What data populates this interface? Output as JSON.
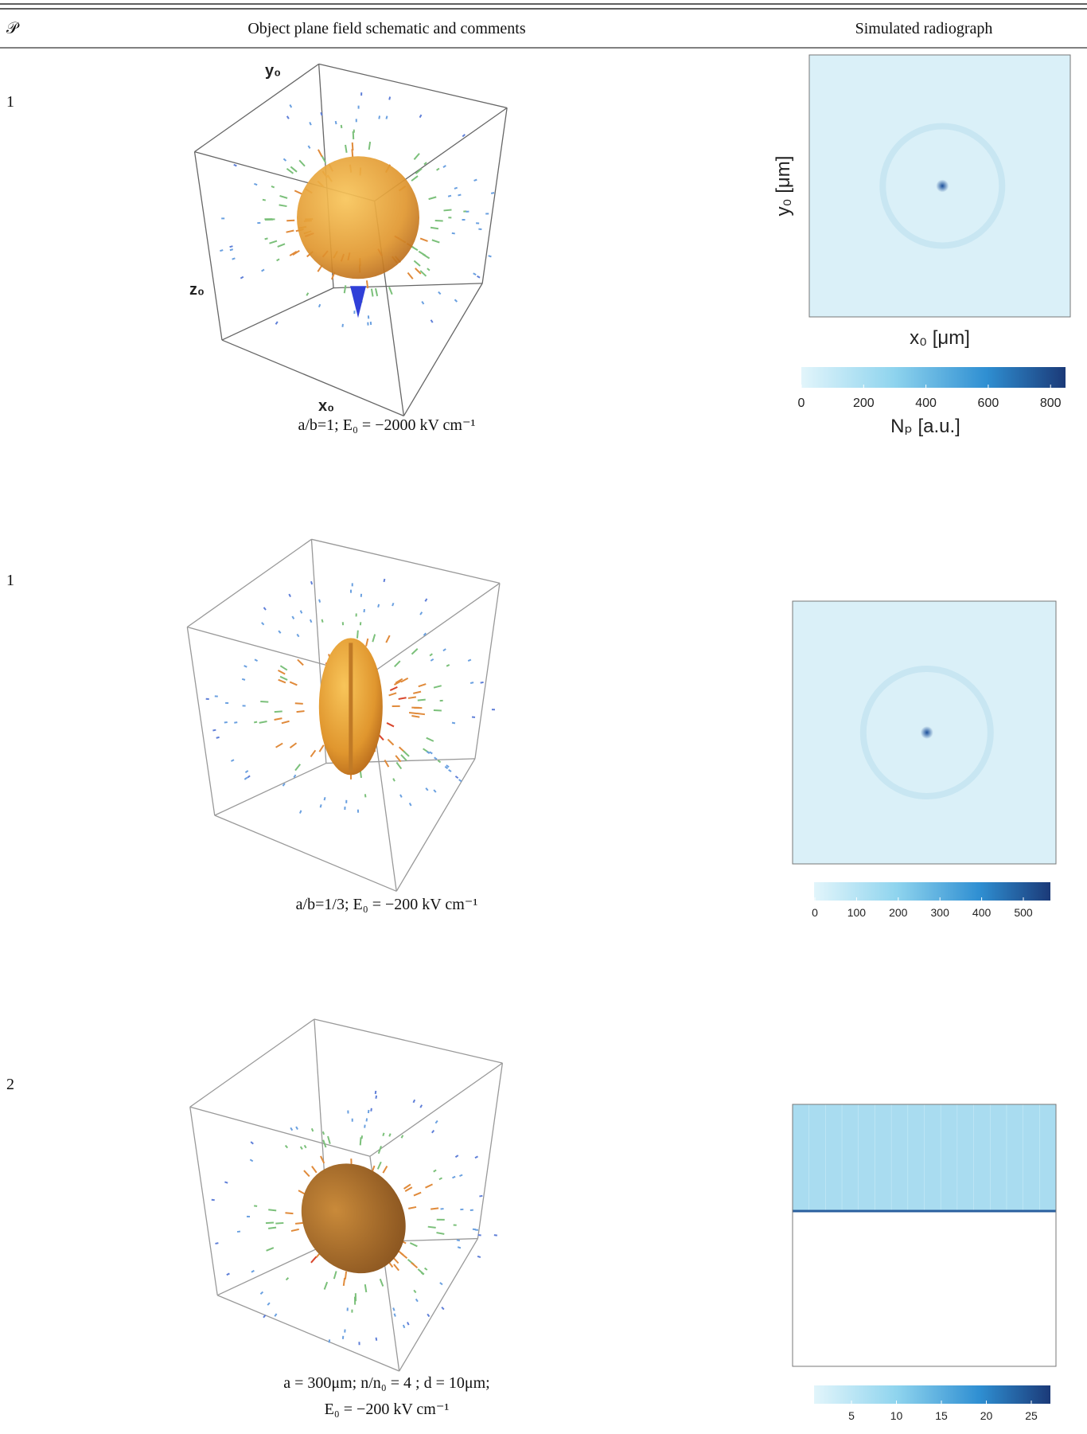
{
  "header": {
    "col1": "𝒫",
    "col2": "Object plane field schematic and comments",
    "col3": "Simulated radiograph"
  },
  "rows": [
    {
      "p": "1",
      "axes": {
        "y": "y₀",
        "z": "z₀",
        "x": "x₀"
      },
      "caption": [
        "a/b=1; E₀ = −2000 kV cm⁻¹"
      ],
      "radiograph": {
        "ylabel": "y₀ [μm]",
        "xlabel": "x₀ [μm]"
      },
      "colorbar": {
        "ticks": [
          0,
          200,
          400,
          600,
          800
        ],
        "label": "Nₚ  [a.u.]"
      }
    },
    {
      "p": "1",
      "caption": [
        "a/b=1/3;  E₀ = −200 kV cm⁻¹"
      ],
      "colorbar": {
        "ticks": [
          0,
          100,
          200,
          300,
          400,
          500
        ]
      }
    },
    {
      "p": "2",
      "caption": [
        "a = 300μm; n/n₀ =  4 ; d = 10μm;",
        "E₀ = −200 kV cm⁻¹"
      ],
      "colorbar": {
        "ticks": [
          5,
          10,
          15,
          20,
          25
        ]
      }
    }
  ]
}
